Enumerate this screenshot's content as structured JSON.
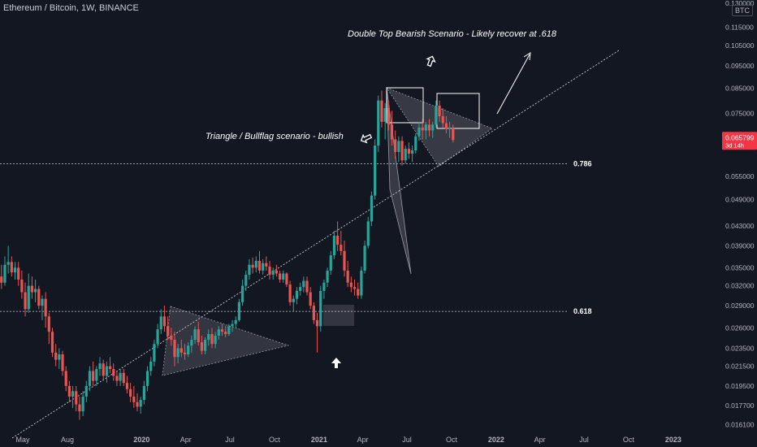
{
  "symbol_title": "Ethereum / Bitcoin, 1W, BINANCE",
  "scale_button": "BTC",
  "colors": {
    "background": "#131722",
    "up": "#26a69a",
    "down": "#ef5350",
    "text": "#b2b5be",
    "annotation": "#ffffff",
    "price_badge": "#f23645",
    "fib_line": "#c8ccd6"
  },
  "chart_data": {
    "type": "candlestick",
    "title": "Ethereum / Bitcoin, 1W, BINANCE",
    "y_scale": "log",
    "ylim": [
      0.0155,
      0.1315
    ],
    "y_ticks": [
      0.13,
      0.115,
      0.105,
      0.095,
      0.085,
      0.075,
      0.065,
      0.055,
      0.049,
      0.043,
      0.039,
      0.035,
      0.032,
      0.029,
      0.026,
      0.0235,
      0.0215,
      0.0195,
      0.0177,
      0.0161
    ],
    "y_tick_labels": [
      "0.130000",
      "0.115000",
      "0.105000",
      "0.095000",
      "0.085000",
      "0.075000",
      "0.065000",
      "0.055000",
      "0.049000",
      "0.043000",
      "0.039000",
      "0.035000",
      "0.032000",
      "0.029000",
      "0.026000",
      "0.023500",
      "0.021500",
      "0.019500",
      "0.017700",
      "0.016100"
    ],
    "x_ticks": [
      "May",
      "Aug",
      "2020",
      "Apr",
      "Jul",
      "Oct",
      "2021",
      "Apr",
      "Jul",
      "Oct",
      "2022",
      "Apr",
      "Jul",
      "Oct",
      "2023"
    ],
    "x_tick_dates": [
      "2019-05-01",
      "2019-08-01",
      "2020-01-01",
      "2020-04-01",
      "2020-07-01",
      "2020-10-01",
      "2021-01-01",
      "2021-04-01",
      "2021-07-01",
      "2021-10-01",
      "2022-01-01",
      "2022-04-01",
      "2022-07-01",
      "2022-10-01",
      "2023-01-01"
    ],
    "xlim": [
      "2019-03-15",
      "2023-04-10"
    ],
    "current_price": {
      "value": "0.065799",
      "countdown": "3d 14h"
    },
    "fib_levels": [
      {
        "label": "0.786",
        "value": 0.0585
      },
      {
        "label": "0.618",
        "value": 0.0282
      }
    ],
    "annotations": [
      "Double Top Bearish Scenario - Likely recover at .618",
      "Triangle / Bullflag scenario - bullish"
    ],
    "weekly_ohlc": [
      {
        "date": "2019-03-11",
        "o": 0.0345,
        "h": 0.0365,
        "l": 0.032,
        "c": 0.0335
      },
      {
        "date": "2019-03-18",
        "o": 0.0335,
        "h": 0.0355,
        "l": 0.0315,
        "c": 0.0325
      },
      {
        "date": "2019-03-25",
        "o": 0.0325,
        "h": 0.037,
        "l": 0.032,
        "c": 0.0355
      },
      {
        "date": "2019-04-01",
        "o": 0.0355,
        "h": 0.039,
        "l": 0.034,
        "c": 0.036
      },
      {
        "date": "2019-04-08",
        "o": 0.036,
        "h": 0.037,
        "l": 0.0335,
        "c": 0.0342
      },
      {
        "date": "2019-04-15",
        "o": 0.0342,
        "h": 0.036,
        "l": 0.033,
        "c": 0.035
      },
      {
        "date": "2019-04-22",
        "o": 0.035,
        "h": 0.036,
        "l": 0.032,
        "c": 0.033
      },
      {
        "date": "2019-04-29",
        "o": 0.033,
        "h": 0.0345,
        "l": 0.03,
        "c": 0.031
      },
      {
        "date": "2019-05-06",
        "o": 0.031,
        "h": 0.0325,
        "l": 0.0275,
        "c": 0.0285
      },
      {
        "date": "2019-05-13",
        "o": 0.0285,
        "h": 0.034,
        "l": 0.028,
        "c": 0.032
      },
      {
        "date": "2019-05-20",
        "o": 0.032,
        "h": 0.0335,
        "l": 0.03,
        "c": 0.031
      },
      {
        "date": "2019-05-27",
        "o": 0.031,
        "h": 0.033,
        "l": 0.0295,
        "c": 0.0315
      },
      {
        "date": "2019-06-03",
        "o": 0.0315,
        "h": 0.032,
        "l": 0.0285,
        "c": 0.029
      },
      {
        "date": "2019-06-10",
        "o": 0.029,
        "h": 0.0305,
        "l": 0.027,
        "c": 0.03
      },
      {
        "date": "2019-06-17",
        "o": 0.03,
        "h": 0.031,
        "l": 0.026,
        "c": 0.0275
      },
      {
        "date": "2019-06-24",
        "o": 0.0275,
        "h": 0.028,
        "l": 0.024,
        "c": 0.0255
      },
      {
        "date": "2019-07-01",
        "o": 0.0255,
        "h": 0.026,
        "l": 0.0225,
        "c": 0.023
      },
      {
        "date": "2019-07-08",
        "o": 0.023,
        "h": 0.024,
        "l": 0.0215,
        "c": 0.0222
      },
      {
        "date": "2019-07-15",
        "o": 0.0222,
        "h": 0.0235,
        "l": 0.0212,
        "c": 0.0228
      },
      {
        "date": "2019-07-22",
        "o": 0.0228,
        "h": 0.0232,
        "l": 0.0205,
        "c": 0.021
      },
      {
        "date": "2019-07-29",
        "o": 0.021,
        "h": 0.0215,
        "l": 0.019,
        "c": 0.0195
      },
      {
        "date": "2019-08-05",
        "o": 0.0195,
        "h": 0.02,
        "l": 0.018,
        "c": 0.0185
      },
      {
        "date": "2019-08-12",
        "o": 0.0185,
        "h": 0.0195,
        "l": 0.0175,
        "c": 0.019
      },
      {
        "date": "2019-08-19",
        "o": 0.019,
        "h": 0.0195,
        "l": 0.0172,
        "c": 0.0178
      },
      {
        "date": "2019-08-26",
        "o": 0.0178,
        "h": 0.0185,
        "l": 0.0165,
        "c": 0.0172
      },
      {
        "date": "2019-09-02",
        "o": 0.0172,
        "h": 0.019,
        "l": 0.0168,
        "c": 0.0185
      },
      {
        "date": "2019-09-09",
        "o": 0.0185,
        "h": 0.02,
        "l": 0.018,
        "c": 0.0195
      },
      {
        "date": "2019-09-16",
        "o": 0.0195,
        "h": 0.0215,
        "l": 0.019,
        "c": 0.021
      },
      {
        "date": "2019-09-23",
        "o": 0.021,
        "h": 0.022,
        "l": 0.0195,
        "c": 0.02
      },
      {
        "date": "2019-09-30",
        "o": 0.02,
        "h": 0.0215,
        "l": 0.0195,
        "c": 0.0212
      },
      {
        "date": "2019-10-07",
        "o": 0.0212,
        "h": 0.0225,
        "l": 0.0205,
        "c": 0.0218
      },
      {
        "date": "2019-10-14",
        "o": 0.0218,
        "h": 0.0222,
        "l": 0.02,
        "c": 0.0205
      },
      {
        "date": "2019-10-21",
        "o": 0.0205,
        "h": 0.022,
        "l": 0.0198,
        "c": 0.0215
      },
      {
        "date": "2019-10-28",
        "o": 0.0215,
        "h": 0.0225,
        "l": 0.0208,
        "c": 0.0212
      },
      {
        "date": "2019-11-04",
        "o": 0.0212,
        "h": 0.0218,
        "l": 0.02,
        "c": 0.0205
      },
      {
        "date": "2019-11-11",
        "o": 0.0205,
        "h": 0.021,
        "l": 0.0195,
        "c": 0.02
      },
      {
        "date": "2019-11-18",
        "o": 0.02,
        "h": 0.0212,
        "l": 0.0195,
        "c": 0.0208
      },
      {
        "date": "2019-11-25",
        "o": 0.0208,
        "h": 0.0212,
        "l": 0.0195,
        "c": 0.0198
      },
      {
        "date": "2019-12-02",
        "o": 0.0198,
        "h": 0.0205,
        "l": 0.0188,
        "c": 0.0192
      },
      {
        "date": "2019-12-09",
        "o": 0.0192,
        "h": 0.0198,
        "l": 0.018,
        "c": 0.0185
      },
      {
        "date": "2019-12-16",
        "o": 0.0185,
        "h": 0.0195,
        "l": 0.0175,
        "c": 0.018
      },
      {
        "date": "2019-12-23",
        "o": 0.018,
        "h": 0.0188,
        "l": 0.0172,
        "c": 0.0176
      },
      {
        "date": "2019-12-30",
        "o": 0.0176,
        "h": 0.0185,
        "l": 0.017,
        "c": 0.0182
      },
      {
        "date": "2020-01-06",
        "o": 0.0182,
        "h": 0.02,
        "l": 0.0178,
        "c": 0.0195
      },
      {
        "date": "2020-01-13",
        "o": 0.0195,
        "h": 0.0215,
        "l": 0.019,
        "c": 0.021
      },
      {
        "date": "2020-01-20",
        "o": 0.021,
        "h": 0.0225,
        "l": 0.0205,
        "c": 0.022
      },
      {
        "date": "2020-01-27",
        "o": 0.022,
        "h": 0.0245,
        "l": 0.0215,
        "c": 0.024
      },
      {
        "date": "2020-02-03",
        "o": 0.024,
        "h": 0.0265,
        "l": 0.0235,
        "c": 0.0258
      },
      {
        "date": "2020-02-10",
        "o": 0.0258,
        "h": 0.0285,
        "l": 0.0252,
        "c": 0.0275
      },
      {
        "date": "2020-02-17",
        "o": 0.0275,
        "h": 0.029,
        "l": 0.0255,
        "c": 0.0262
      },
      {
        "date": "2020-02-24",
        "o": 0.0262,
        "h": 0.0275,
        "l": 0.0245,
        "c": 0.025
      },
      {
        "date": "2020-03-02",
        "o": 0.025,
        "h": 0.026,
        "l": 0.0238,
        "c": 0.0245
      },
      {
        "date": "2020-03-09",
        "o": 0.0245,
        "h": 0.0255,
        "l": 0.0215,
        "c": 0.0225
      },
      {
        "date": "2020-03-16",
        "o": 0.0225,
        "h": 0.024,
        "l": 0.0218,
        "c": 0.0235
      },
      {
        "date": "2020-03-23",
        "o": 0.0235,
        "h": 0.0245,
        "l": 0.0225,
        "c": 0.023
      },
      {
        "date": "2020-03-30",
        "o": 0.023,
        "h": 0.024,
        "l": 0.0222,
        "c": 0.0228
      },
      {
        "date": "2020-04-06",
        "o": 0.0228,
        "h": 0.0242,
        "l": 0.0225,
        "c": 0.0238
      },
      {
        "date": "2020-04-13",
        "o": 0.0238,
        "h": 0.025,
        "l": 0.023,
        "c": 0.0245
      },
      {
        "date": "2020-04-20",
        "o": 0.0245,
        "h": 0.0262,
        "l": 0.024,
        "c": 0.0258
      },
      {
        "date": "2020-04-27",
        "o": 0.0258,
        "h": 0.0268,
        "l": 0.0238,
        "c": 0.0242
      },
      {
        "date": "2020-05-04",
        "o": 0.0242,
        "h": 0.025,
        "l": 0.0228,
        "c": 0.0232
      },
      {
        "date": "2020-05-11",
        "o": 0.0232,
        "h": 0.0248,
        "l": 0.0228,
        "c": 0.0245
      },
      {
        "date": "2020-05-18",
        "o": 0.0245,
        "h": 0.0258,
        "l": 0.0238,
        "c": 0.0252
      },
      {
        "date": "2020-05-25",
        "o": 0.0252,
        "h": 0.026,
        "l": 0.0235,
        "c": 0.024
      },
      {
        "date": "2020-06-01",
        "o": 0.024,
        "h": 0.0255,
        "l": 0.0235,
        "c": 0.025
      },
      {
        "date": "2020-06-08",
        "o": 0.025,
        "h": 0.0262,
        "l": 0.0245,
        "c": 0.0258
      },
      {
        "date": "2020-06-15",
        "o": 0.0258,
        "h": 0.0265,
        "l": 0.025,
        "c": 0.0255
      },
      {
        "date": "2020-06-22",
        "o": 0.0255,
        "h": 0.0262,
        "l": 0.0248,
        "c": 0.0252
      },
      {
        "date": "2020-06-29",
        "o": 0.0252,
        "h": 0.0265,
        "l": 0.025,
        "c": 0.0262
      },
      {
        "date": "2020-07-06",
        "o": 0.0262,
        "h": 0.027,
        "l": 0.0255,
        "c": 0.0265
      },
      {
        "date": "2020-07-13",
        "o": 0.0265,
        "h": 0.0275,
        "l": 0.026,
        "c": 0.027
      },
      {
        "date": "2020-07-20",
        "o": 0.027,
        "h": 0.03,
        "l": 0.0268,
        "c": 0.0295
      },
      {
        "date": "2020-07-27",
        "o": 0.0295,
        "h": 0.033,
        "l": 0.029,
        "c": 0.032
      },
      {
        "date": "2020-08-03",
        "o": 0.032,
        "h": 0.0345,
        "l": 0.0312,
        "c": 0.0338
      },
      {
        "date": "2020-08-10",
        "o": 0.0338,
        "h": 0.0365,
        "l": 0.033,
        "c": 0.0355
      },
      {
        "date": "2020-08-17",
        "o": 0.0355,
        "h": 0.0368,
        "l": 0.034,
        "c": 0.035
      },
      {
        "date": "2020-08-24",
        "o": 0.035,
        "h": 0.037,
        "l": 0.0342,
        "c": 0.0362
      },
      {
        "date": "2020-08-31",
        "o": 0.0362,
        "h": 0.038,
        "l": 0.034,
        "c": 0.0345
      },
      {
        "date": "2020-09-07",
        "o": 0.0345,
        "h": 0.0365,
        "l": 0.0338,
        "c": 0.0358
      },
      {
        "date": "2020-09-14",
        "o": 0.0358,
        "h": 0.037,
        "l": 0.0345,
        "c": 0.0352
      },
      {
        "date": "2020-09-21",
        "o": 0.0352,
        "h": 0.0362,
        "l": 0.033,
        "c": 0.0338
      },
      {
        "date": "2020-09-28",
        "o": 0.0338,
        "h": 0.035,
        "l": 0.033,
        "c": 0.0345
      },
      {
        "date": "2020-10-05",
        "o": 0.0345,
        "h": 0.0355,
        "l": 0.0335,
        "c": 0.034
      },
      {
        "date": "2020-10-12",
        "o": 0.034,
        "h": 0.0345,
        "l": 0.0325,
        "c": 0.033
      },
      {
        "date": "2020-10-19",
        "o": 0.033,
        "h": 0.0345,
        "l": 0.0325,
        "c": 0.034
      },
      {
        "date": "2020-10-26",
        "o": 0.034,
        "h": 0.0342,
        "l": 0.0318,
        "c": 0.0322
      },
      {
        "date": "2020-11-02",
        "o": 0.0322,
        "h": 0.0328,
        "l": 0.029,
        "c": 0.0295
      },
      {
        "date": "2020-11-09",
        "o": 0.0295,
        "h": 0.0305,
        "l": 0.0282,
        "c": 0.03
      },
      {
        "date": "2020-11-16",
        "o": 0.03,
        "h": 0.0318,
        "l": 0.0292,
        "c": 0.0312
      },
      {
        "date": "2020-11-23",
        "o": 0.0312,
        "h": 0.0325,
        "l": 0.0305,
        "c": 0.0318
      },
      {
        "date": "2020-11-30",
        "o": 0.0318,
        "h": 0.0335,
        "l": 0.031,
        "c": 0.0328
      },
      {
        "date": "2020-12-07",
        "o": 0.0328,
        "h": 0.0335,
        "l": 0.0305,
        "c": 0.031
      },
      {
        "date": "2020-12-14",
        "o": 0.031,
        "h": 0.0318,
        "l": 0.0285,
        "c": 0.029
      },
      {
        "date": "2020-12-21",
        "o": 0.029,
        "h": 0.0295,
        "l": 0.0265,
        "c": 0.027
      },
      {
        "date": "2020-12-28",
        "o": 0.027,
        "h": 0.028,
        "l": 0.023,
        "c": 0.0262
      },
      {
        "date": "2021-01-04",
        "o": 0.0262,
        "h": 0.032,
        "l": 0.0255,
        "c": 0.0312
      },
      {
        "date": "2021-01-11",
        "o": 0.0312,
        "h": 0.033,
        "l": 0.03,
        "c": 0.0325
      },
      {
        "date": "2021-01-18",
        "o": 0.0325,
        "h": 0.035,
        "l": 0.0318,
        "c": 0.0345
      },
      {
        "date": "2021-01-25",
        "o": 0.0345,
        "h": 0.038,
        "l": 0.0338,
        "c": 0.0372
      },
      {
        "date": "2021-02-01",
        "o": 0.0372,
        "h": 0.042,
        "l": 0.0365,
        "c": 0.041
      },
      {
        "date": "2021-02-08",
        "o": 0.041,
        "h": 0.044,
        "l": 0.038,
        "c": 0.0392
      },
      {
        "date": "2021-02-15",
        "o": 0.0392,
        "h": 0.042,
        "l": 0.0372,
        "c": 0.038
      },
      {
        "date": "2021-02-22",
        "o": 0.038,
        "h": 0.04,
        "l": 0.0335,
        "c": 0.0345
      },
      {
        "date": "2021-03-01",
        "o": 0.0345,
        "h": 0.0362,
        "l": 0.0318,
        "c": 0.0325
      },
      {
        "date": "2021-03-08",
        "o": 0.0325,
        "h": 0.0335,
        "l": 0.031,
        "c": 0.0318
      },
      {
        "date": "2021-03-15",
        "o": 0.0318,
        "h": 0.033,
        "l": 0.0305,
        "c": 0.0315
      },
      {
        "date": "2021-03-22",
        "o": 0.0315,
        "h": 0.0325,
        "l": 0.03,
        "c": 0.0305
      },
      {
        "date": "2021-03-29",
        "o": 0.0305,
        "h": 0.0352,
        "l": 0.03,
        "c": 0.0345
      },
      {
        "date": "2021-04-05",
        "o": 0.0345,
        "h": 0.04,
        "l": 0.034,
        "c": 0.039
      },
      {
        "date": "2021-04-12",
        "o": 0.039,
        "h": 0.045,
        "l": 0.0385,
        "c": 0.044
      },
      {
        "date": "2021-04-19",
        "o": 0.044,
        "h": 0.051,
        "l": 0.043,
        "c": 0.05
      },
      {
        "date": "2021-04-26",
        "o": 0.05,
        "h": 0.066,
        "l": 0.049,
        "c": 0.064
      },
      {
        "date": "2021-05-03",
        "o": 0.064,
        "h": 0.082,
        "l": 0.062,
        "c": 0.08
      },
      {
        "date": "2021-05-10",
        "o": 0.08,
        "h": 0.084,
        "l": 0.07,
        "c": 0.072
      },
      {
        "date": "2021-05-17",
        "o": 0.072,
        "h": 0.079,
        "l": 0.066,
        "c": 0.077
      },
      {
        "date": "2021-05-24",
        "o": 0.077,
        "h": 0.08,
        "l": 0.069,
        "c": 0.071
      },
      {
        "date": "2021-05-31",
        "o": 0.071,
        "h": 0.076,
        "l": 0.064,
        "c": 0.066
      },
      {
        "date": "2021-06-07",
        "o": 0.066,
        "h": 0.069,
        "l": 0.06,
        "c": 0.062
      },
      {
        "date": "2021-06-14",
        "o": 0.062,
        "h": 0.067,
        "l": 0.059,
        "c": 0.0655
      },
      {
        "date": "2021-06-21",
        "o": 0.0655,
        "h": 0.067,
        "l": 0.058,
        "c": 0.0595
      },
      {
        "date": "2021-06-28",
        "o": 0.0595,
        "h": 0.064,
        "l": 0.0585,
        "c": 0.063
      },
      {
        "date": "2021-07-05",
        "o": 0.063,
        "h": 0.065,
        "l": 0.06,
        "c": 0.0615
      },
      {
        "date": "2021-07-12",
        "o": 0.0615,
        "h": 0.064,
        "l": 0.059,
        "c": 0.0625
      },
      {
        "date": "2021-07-19",
        "o": 0.0625,
        "h": 0.068,
        "l": 0.0615,
        "c": 0.067
      },
      {
        "date": "2021-07-26",
        "o": 0.067,
        "h": 0.072,
        "l": 0.0655,
        "c": 0.07
      },
      {
        "date": "2021-08-02",
        "o": 0.07,
        "h": 0.073,
        "l": 0.066,
        "c": 0.069
      },
      {
        "date": "2021-08-09",
        "o": 0.069,
        "h": 0.072,
        "l": 0.066,
        "c": 0.071
      },
      {
        "date": "2021-08-16",
        "o": 0.071,
        "h": 0.073,
        "l": 0.067,
        "c": 0.069
      },
      {
        "date": "2021-08-23",
        "o": 0.069,
        "h": 0.072,
        "l": 0.0665,
        "c": 0.071
      },
      {
        "date": "2021-08-30",
        "o": 0.071,
        "h": 0.08,
        "l": 0.07,
        "c": 0.078
      },
      {
        "date": "2021-09-06",
        "o": 0.078,
        "h": 0.08,
        "l": 0.072,
        "c": 0.074
      },
      {
        "date": "2021-09-13",
        "o": 0.074,
        "h": 0.077,
        "l": 0.07,
        "c": 0.0715
      },
      {
        "date": "2021-09-20",
        "o": 0.0715,
        "h": 0.074,
        "l": 0.068,
        "c": 0.0695
      },
      {
        "date": "2021-09-27",
        "o": 0.0695,
        "h": 0.072,
        "l": 0.0665,
        "c": 0.07
      },
      {
        "date": "2021-10-04",
        "o": 0.07,
        "h": 0.071,
        "l": 0.065,
        "c": 0.0658
      }
    ]
  }
}
